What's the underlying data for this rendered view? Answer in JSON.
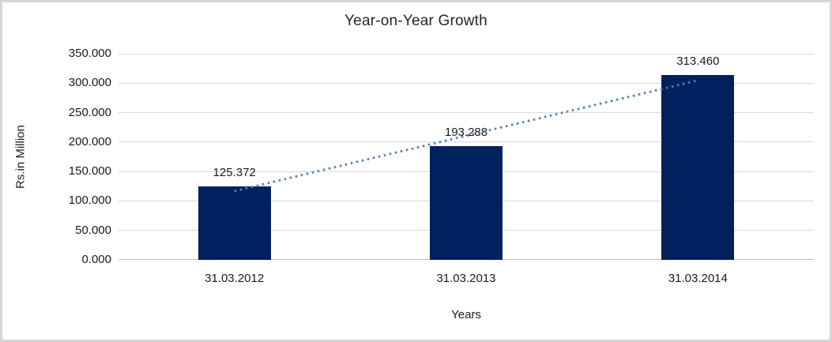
{
  "chart_data": {
    "type": "bar",
    "title": "Year-on-Year Growth",
    "xlabel": "Years",
    "ylabel": "Rs.in Million",
    "categories": [
      "31.03.2012",
      "31.03.2013",
      "31.03.2014"
    ],
    "values": [
      125.372,
      193.288,
      313.46
    ],
    "data_labels": [
      "125.372",
      "193.288",
      "313.460"
    ],
    "ylim": [
      0,
      350
    ],
    "ytick_step": 50,
    "ytick_labels": [
      "0.000",
      "50.000",
      "100.000",
      "150.000",
      "200.000",
      "250.000",
      "300.000",
      "350.000"
    ],
    "grid": "horizontal",
    "legend": "none",
    "trendline": {
      "type": "linear",
      "style": "dotted"
    },
    "colors": {
      "bar": "#00215e",
      "trendline": "#4f81bd",
      "gridline": "#d9d9d9",
      "axis_line": "#c0c0c0",
      "frame_border": "#d6d6d6",
      "text": "#1a1a1a"
    }
  }
}
